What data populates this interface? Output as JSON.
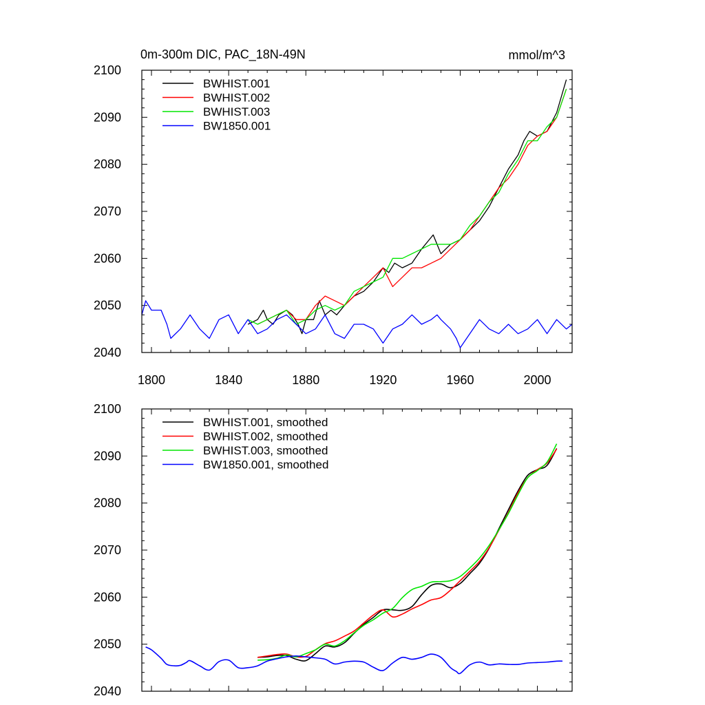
{
  "chart_data": [
    {
      "type": "line",
      "title": "0m-300m DIC, PAC_18N-49N",
      "units_label": "mmol/m^3",
      "xlim": [
        1795,
        2018
      ],
      "ylim": [
        2040,
        2100
      ],
      "x_ticks": [
        1800,
        1840,
        1880,
        1920,
        1960,
        2000
      ],
      "x_tick_labels": [
        "1800",
        "1840",
        "1880",
        "1920",
        "1960",
        "2000"
      ],
      "y_ticks": [
        2040,
        2050,
        2060,
        2070,
        2080,
        2090,
        2100
      ],
      "y_tick_labels": [
        "2040",
        "2050",
        "2060",
        "2070",
        "2080",
        "2090",
        "2100"
      ],
      "legend_position": "top-left",
      "series": [
        {
          "name": "BWHIST.001",
          "color": "#000000",
          "smooth": false,
          "x": [
            1850,
            1855,
            1858,
            1860,
            1863,
            1866,
            1870,
            1873,
            1876,
            1878,
            1880,
            1884,
            1887,
            1890,
            1893,
            1896,
            1900,
            1905,
            1910,
            1915,
            1920,
            1923,
            1926,
            1930,
            1935,
            1940,
            1944,
            1946,
            1950,
            1955,
            1960,
            1965,
            1970,
            1975,
            1980,
            1985,
            1990,
            1993,
            1996,
            2000,
            2005,
            2010,
            2015
          ],
          "y": [
            2046,
            2047,
            2049,
            2047,
            2046,
            2048,
            2049,
            2048,
            2046,
            2044,
            2047,
            2047,
            2051,
            2048,
            2049,
            2048,
            2050,
            2052,
            2053,
            2055,
            2058,
            2057,
            2059,
            2058,
            2059,
            2062,
            2064,
            2065,
            2061,
            2063,
            2064,
            2066,
            2068,
            2071,
            2075,
            2079,
            2082,
            2085,
            2087,
            2086,
            2087,
            2091,
            2098
          ]
        },
        {
          "name": "BWHIST.002",
          "color": "#ff0000",
          "smooth": false,
          "x": [
            1855,
            1860,
            1865,
            1870,
            1875,
            1880,
            1885,
            1890,
            1895,
            1900,
            1905,
            1910,
            1915,
            1920,
            1925,
            1930,
            1935,
            1940,
            1945,
            1950,
            1955,
            1960,
            1965,
            1970,
            1975,
            1980,
            1985,
            1990,
            1995,
            2000,
            2005,
            2010,
            2015
          ],
          "y": [
            2046,
            2047,
            2048,
            2049,
            2047,
            2047,
            2050,
            2052,
            2051,
            2050,
            2052,
            2054,
            2056,
            2058,
            2054,
            2056,
            2058,
            2058,
            2059,
            2060,
            2062,
            2064,
            2066,
            2069,
            2072,
            2075,
            2077,
            2080,
            2084,
            2086,
            2087,
            2090,
            2096
          ]
        },
        {
          "name": "BWHIST.003",
          "color": "#00e600",
          "smooth": false,
          "x": [
            1850,
            1855,
            1860,
            1865,
            1870,
            1875,
            1880,
            1885,
            1890,
            1895,
            1900,
            1905,
            1910,
            1915,
            1920,
            1925,
            1930,
            1935,
            1940,
            1945,
            1950,
            1955,
            1960,
            1965,
            1970,
            1975,
            1980,
            1985,
            1990,
            1995,
            2000,
            2005,
            2010,
            2015
          ],
          "y": [
            2047,
            2046,
            2047,
            2048,
            2049,
            2046,
            2047,
            2049,
            2050,
            2049,
            2050,
            2053,
            2054,
            2055,
            2056,
            2060,
            2060,
            2061,
            2062,
            2063,
            2063,
            2063,
            2064,
            2067,
            2069,
            2072,
            2074,
            2078,
            2081,
            2085,
            2085,
            2088,
            2090,
            2096
          ]
        },
        {
          "name": "BW1850.001",
          "color": "#0000ff",
          "smooth": false,
          "x": [
            1795,
            1797,
            1800,
            1805,
            1808,
            1810,
            1815,
            1820,
            1825,
            1830,
            1835,
            1840,
            1845,
            1850,
            1855,
            1860,
            1865,
            1870,
            1875,
            1880,
            1885,
            1890,
            1895,
            1900,
            1905,
            1910,
            1915,
            1920,
            1925,
            1930,
            1935,
            1940,
            1945,
            1948,
            1950,
            1955,
            1958,
            1960,
            1965,
            1970,
            1975,
            1980,
            1985,
            1990,
            1995,
            2000,
            2005,
            2010,
            2015,
            2018
          ],
          "y": [
            2048,
            2051,
            2049,
            2049,
            2046,
            2043,
            2045,
            2048,
            2045,
            2043,
            2047,
            2048,
            2044,
            2047,
            2044,
            2045,
            2047,
            2048,
            2046,
            2044,
            2045,
            2048,
            2044,
            2043,
            2046,
            2046,
            2045,
            2042,
            2045,
            2046,
            2048,
            2046,
            2047,
            2048,
            2047,
            2045,
            2043,
            2041,
            2044,
            2047,
            2045,
            2044,
            2046,
            2044,
            2045,
            2047,
            2044,
            2047,
            2045,
            2046
          ]
        }
      ]
    },
    {
      "type": "line",
      "title": "",
      "xlim": [
        1795,
        2018
      ],
      "ylim": [
        2040,
        2100
      ],
      "x_ticks": [
        1800,
        1840,
        1880,
        1920,
        1960,
        2000
      ],
      "y_ticks": [
        2040,
        2050,
        2060,
        2070,
        2080,
        2090,
        2100
      ],
      "y_tick_labels": [
        "2040",
        "2050",
        "2060",
        "2070",
        "2080",
        "2090",
        "2100"
      ],
      "legend_position": "top-left",
      "series": [
        {
          "name": "BWHIST.001, smoothed",
          "color": "#000000",
          "smooth": true,
          "x": [
            1855,
            1860,
            1865,
            1870,
            1875,
            1880,
            1885,
            1890,
            1895,
            1900,
            1905,
            1910,
            1915,
            1920,
            1925,
            1930,
            1935,
            1940,
            1945,
            1950,
            1955,
            1960,
            1965,
            1970,
            1975,
            1980,
            1985,
            1990,
            1995,
            2000,
            2005,
            2010
          ],
          "y": [
            2047.2,
            2047.3,
            2047.6,
            2047.6,
            2046.8,
            2046.5,
            2048.0,
            2049.6,
            2049.4,
            2050.3,
            2052.3,
            2054.2,
            2055.7,
            2057.3,
            2057.3,
            2057.2,
            2058.0,
            2060.5,
            2062.5,
            2062.8,
            2062.0,
            2062.9,
            2065.0,
            2067.2,
            2070.4,
            2074.5,
            2078.6,
            2082.6,
            2085.9,
            2087.1,
            2088.0,
            2091.6
          ]
        },
        {
          "name": "BWHIST.002, smoothed",
          "color": "#ff0000",
          "smooth": true,
          "x": [
            1855,
            1860,
            1865,
            1870,
            1875,
            1880,
            1885,
            1890,
            1895,
            1900,
            1905,
            1910,
            1915,
            1920,
            1925,
            1930,
            1935,
            1940,
            1945,
            1950,
            1955,
            1960,
            1965,
            1970,
            1975,
            1980,
            1985,
            1990,
            1995,
            2000,
            2005,
            2010
          ],
          "y": [
            2047.2,
            2047.5,
            2047.8,
            2047.9,
            2047.3,
            2047.4,
            2048.8,
            2050.1,
            2050.7,
            2051.7,
            2052.8,
            2054.5,
            2056.2,
            2057.3,
            2055.8,
            2056.4,
            2057.5,
            2058.4,
            2059.4,
            2059.9,
            2061.5,
            2063.5,
            2065.5,
            2067.6,
            2070.5,
            2074.2,
            2078.0,
            2082.2,
            2085.4,
            2087.1,
            2088.5,
            2091.5
          ]
        },
        {
          "name": "BWHIST.003, smoothed",
          "color": "#00e600",
          "smooth": true,
          "x": [
            1855,
            1860,
            1865,
            1870,
            1875,
            1880,
            1885,
            1890,
            1895,
            1900,
            1905,
            1910,
            1915,
            1920,
            1925,
            1930,
            1935,
            1940,
            1945,
            1950,
            1955,
            1960,
            1965,
            1970,
            1975,
            1980,
            1985,
            1990,
            1995,
            2000,
            2005,
            2010
          ],
          "y": [
            2046.6,
            2046.7,
            2047.0,
            2047.7,
            2047.3,
            2048.0,
            2048.8,
            2050.0,
            2049.6,
            2050.7,
            2052.4,
            2054.0,
            2055.2,
            2056.6,
            2057.6,
            2059.9,
            2061.6,
            2062.3,
            2063.2,
            2063.3,
            2063.5,
            2064.4,
            2066.2,
            2068.3,
            2071.0,
            2074.3,
            2077.8,
            2081.8,
            2085.4,
            2086.9,
            2088.7,
            2092.6
          ]
        },
        {
          "name": "BW1850.001, smoothed",
          "color": "#0000ff",
          "smooth": true,
          "x": [
            1797,
            1800,
            1805,
            1808,
            1812,
            1815,
            1818,
            1820,
            1825,
            1830,
            1835,
            1840,
            1845,
            1850,
            1855,
            1860,
            1865,
            1870,
            1875,
            1880,
            1885,
            1890,
            1895,
            1900,
            1905,
            1910,
            1915,
            1920,
            1925,
            1930,
            1935,
            1940,
            1945,
            1950,
            1955,
            1958,
            1960,
            1965,
            1970,
            1975,
            1980,
            1985,
            1990,
            1995,
            2000,
            2005,
            2010,
            2013
          ],
          "y": [
            2049.4,
            2048.8,
            2047.0,
            2045.7,
            2045.4,
            2045.5,
            2046.1,
            2046.5,
            2045.4,
            2044.5,
            2046.3,
            2046.6,
            2045.0,
            2045.0,
            2045.4,
            2046.4,
            2046.9,
            2047.3,
            2047.5,
            2047.3,
            2047.1,
            2046.8,
            2045.8,
            2046.2,
            2046.4,
            2046.2,
            2045.1,
            2044.4,
            2046.0,
            2047.2,
            2046.8,
            2047.2,
            2047.9,
            2047.2,
            2045.0,
            2044.2,
            2043.8,
            2045.6,
            2046.2,
            2045.6,
            2045.8,
            2045.7,
            2045.7,
            2046.0,
            2046.1,
            2046.2,
            2046.4,
            2046.4
          ]
        }
      ]
    }
  ]
}
